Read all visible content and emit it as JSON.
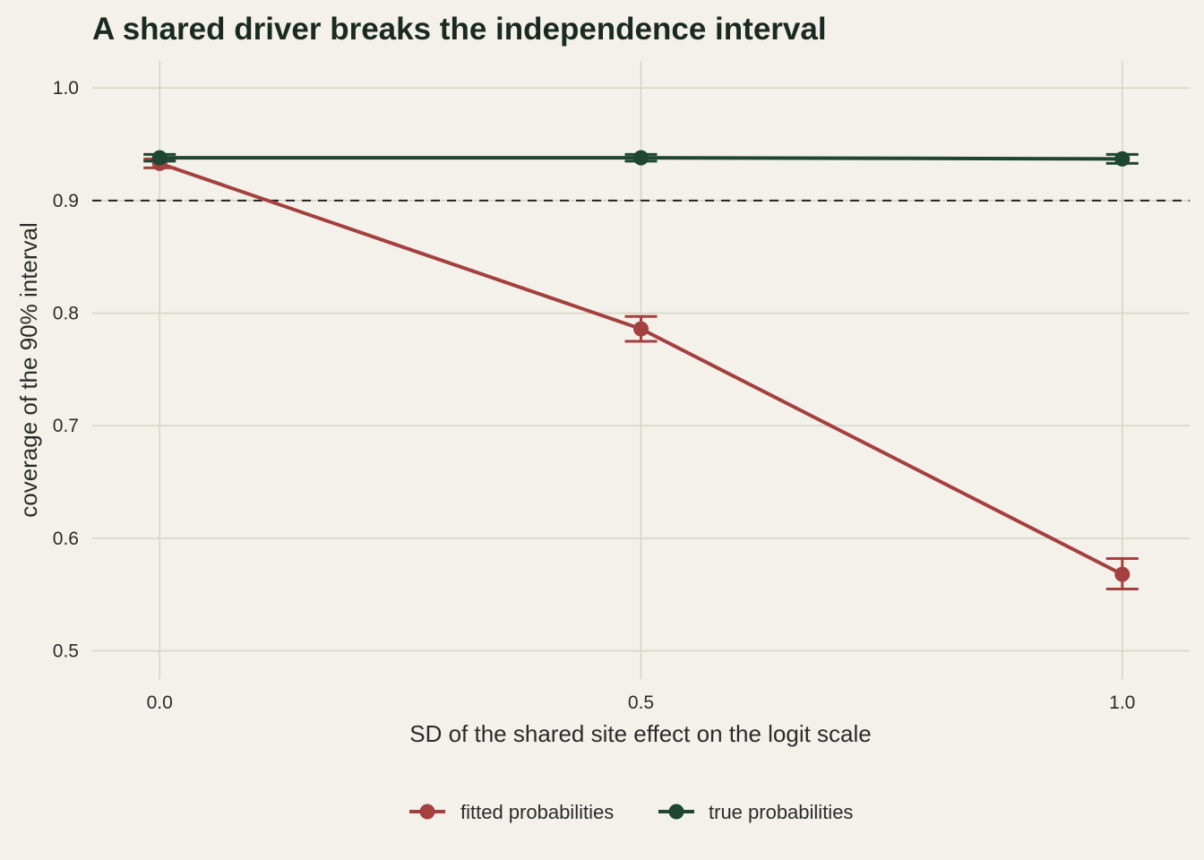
{
  "chart_data": {
    "type": "line",
    "title": "A shared driver breaks the independence interval",
    "xlabel": "SD of the shared site effect on the logit scale",
    "ylabel": "coverage of the 90% interval",
    "x": [
      0.0,
      0.5,
      1.0
    ],
    "x_ticks": [
      "0.0",
      "0.5",
      "1.0"
    ],
    "y_ticks": [
      "0.5",
      "0.6",
      "0.7",
      "0.8",
      "0.9",
      "1.0"
    ],
    "xlim": [
      -0.07,
      1.07
    ],
    "ylim": [
      0.475,
      1.024
    ],
    "reference_line": {
      "y": 0.9,
      "style": "dashed"
    },
    "grid": true,
    "legend_position": "bottom",
    "series": [
      {
        "name": "fitted probabilities",
        "color": "#a4403f",
        "values": [
          0.933,
          0.786,
          0.568
        ],
        "error_low": [
          0.929,
          0.775,
          0.555
        ],
        "error_high": [
          0.937,
          0.797,
          0.582
        ]
      },
      {
        "name": "true probabilities",
        "color": "#1f4533",
        "values": [
          0.938,
          0.938,
          0.937
        ],
        "error_low": [
          0.935,
          0.935,
          0.933
        ],
        "error_high": [
          0.941,
          0.941,
          0.941
        ]
      }
    ]
  }
}
